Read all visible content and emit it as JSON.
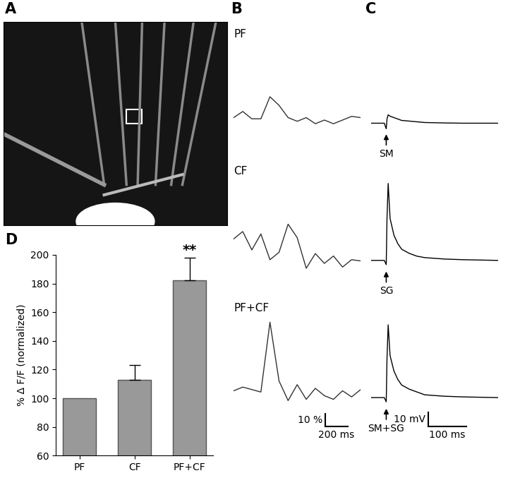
{
  "panel_labels": [
    "A",
    "B",
    "C",
    "D"
  ],
  "chart_data": [
    {
      "type": "line",
      "title": "PF",
      "color": "#333333",
      "tick_labels": false,
      "x": [
        0,
        80,
        160,
        240,
        320,
        400,
        480,
        560,
        640,
        720,
        800,
        880,
        960,
        1040,
        1120
      ],
      "values": [
        1,
        6,
        0,
        0,
        18,
        11,
        1,
        -2,
        1,
        -4,
        -1,
        -4,
        -1,
        2,
        1
      ],
      "xlim": [
        0,
        1120
      ],
      "ylim": [
        -15,
        65
      ]
    },
    {
      "type": "line",
      "title": "CF",
      "color": "#333333",
      "tick_labels": false,
      "x": [
        0,
        80,
        160,
        240,
        320,
        400,
        480,
        560,
        640,
        720,
        800,
        880,
        960,
        1040,
        1120
      ],
      "values": [
        14,
        20,
        5,
        18,
        -3,
        3,
        26,
        15,
        -10,
        2,
        -6,
        0,
        -9,
        -3,
        -4
      ],
      "xlim": [
        0,
        1120
      ],
      "ylim": [
        -15,
        65
      ]
    },
    {
      "type": "line",
      "title": "PF+CF",
      "color": "#333333",
      "tick_labels": false,
      "x": [
        0,
        80,
        160,
        240,
        320,
        400,
        480,
        560,
        640,
        720,
        800,
        880,
        960,
        1040,
        1120
      ],
      "values": [
        2,
        5,
        3,
        1,
        58,
        10,
        -6,
        7,
        -5,
        4,
        -2,
        -5,
        2,
        -3,
        3
      ],
      "xlim": [
        0,
        1120
      ],
      "ylim": [
        -15,
        65
      ],
      "scale_bar": {
        "x": {
          "value": 200,
          "label": "200 ms"
        },
        "y": {
          "value": 10,
          "label": "10 %"
        }
      }
    },
    {
      "type": "line",
      "annotation": "SM",
      "color": "#000000",
      "tick_labels": false,
      "x": [
        -40,
        -5,
        0,
        2,
        5,
        10,
        20,
        30,
        40,
        60,
        80,
        100,
        150,
        200,
        290
      ],
      "values": [
        0,
        0,
        -4,
        3,
        6,
        5,
        4,
        3,
        2,
        1.5,
        1,
        0.5,
        0.2,
        0,
        0
      ],
      "xlim": [
        -40,
        290
      ],
      "ylim": [
        -10,
        60
      ]
    },
    {
      "type": "line",
      "annotation": "SG",
      "color": "#000000",
      "tick_labels": false,
      "x": [
        -40,
        -5,
        0,
        2,
        5,
        10,
        20,
        30,
        40,
        60,
        80,
        100,
        150,
        200,
        290
      ],
      "values": [
        0,
        0,
        -3,
        30,
        55,
        30,
        18,
        12,
        8,
        5,
        3,
        2,
        1,
        0.5,
        0
      ],
      "xlim": [
        -40,
        290
      ],
      "ylim": [
        -10,
        60
      ]
    },
    {
      "type": "line",
      "annotation": "SM+SG",
      "color": "#000000",
      "tick_labels": false,
      "x": [
        -40,
        -5,
        0,
        2,
        5,
        10,
        20,
        30,
        40,
        60,
        80,
        100,
        150,
        200,
        290
      ],
      "values": [
        0,
        0,
        -3,
        28,
        52,
        30,
        19,
        13,
        9,
        6,
        4,
        2,
        1,
        0.5,
        0
      ],
      "xlim": [
        -40,
        290
      ],
      "ylim": [
        -10,
        60
      ],
      "scale_bar": {
        "x": {
          "value": 100,
          "label": "100 ms"
        },
        "y": {
          "value": 10,
          "label": "10 mV"
        }
      }
    },
    {
      "type": "bar",
      "ylabel": "% Δ F/F (normalized)",
      "color": "#999999",
      "categories": [
        "PF",
        "CF",
        "PF+CF"
      ],
      "values": [
        100,
        113,
        182
      ],
      "errors": [
        0,
        10,
        16
      ],
      "ylim": [
        60,
        200
      ],
      "yticks": [
        60,
        80,
        100,
        120,
        140,
        160,
        180,
        200
      ],
      "annotations": [
        {
          "category": "PF+CF",
          "text": "**"
        }
      ]
    }
  ]
}
